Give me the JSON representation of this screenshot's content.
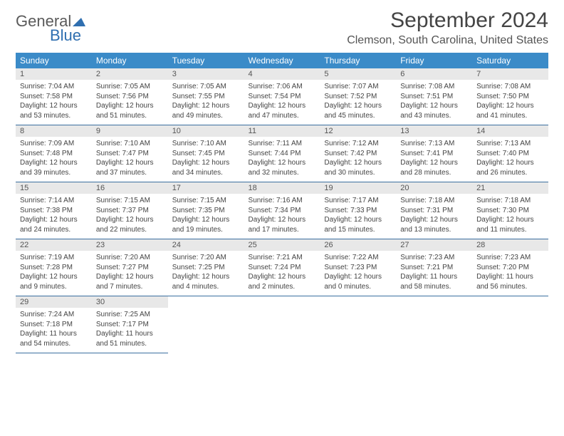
{
  "logo": {
    "line1": "General",
    "line2": "Blue"
  },
  "title": "September 2024",
  "location": "Clemson, South Carolina, United States",
  "colors": {
    "header_bg": "#3b8bc8",
    "header_text": "#ffffff",
    "daynum_bg": "#e8e8e8",
    "border": "#3b6fa0",
    "logo_blue": "#2f6fb0",
    "logo_gray": "#5a5a5a"
  },
  "weekdays": [
    "Sunday",
    "Monday",
    "Tuesday",
    "Wednesday",
    "Thursday",
    "Friday",
    "Saturday"
  ],
  "weeks": [
    [
      {
        "n": "1",
        "sr": "7:04 AM",
        "ss": "7:58 PM",
        "dl": "12 hours and 53 minutes."
      },
      {
        "n": "2",
        "sr": "7:05 AM",
        "ss": "7:56 PM",
        "dl": "12 hours and 51 minutes."
      },
      {
        "n": "3",
        "sr": "7:05 AM",
        "ss": "7:55 PM",
        "dl": "12 hours and 49 minutes."
      },
      {
        "n": "4",
        "sr": "7:06 AM",
        "ss": "7:54 PM",
        "dl": "12 hours and 47 minutes."
      },
      {
        "n": "5",
        "sr": "7:07 AM",
        "ss": "7:52 PM",
        "dl": "12 hours and 45 minutes."
      },
      {
        "n": "6",
        "sr": "7:08 AM",
        "ss": "7:51 PM",
        "dl": "12 hours and 43 minutes."
      },
      {
        "n": "7",
        "sr": "7:08 AM",
        "ss": "7:50 PM",
        "dl": "12 hours and 41 minutes."
      }
    ],
    [
      {
        "n": "8",
        "sr": "7:09 AM",
        "ss": "7:48 PM",
        "dl": "12 hours and 39 minutes."
      },
      {
        "n": "9",
        "sr": "7:10 AM",
        "ss": "7:47 PM",
        "dl": "12 hours and 37 minutes."
      },
      {
        "n": "10",
        "sr": "7:10 AM",
        "ss": "7:45 PM",
        "dl": "12 hours and 34 minutes."
      },
      {
        "n": "11",
        "sr": "7:11 AM",
        "ss": "7:44 PM",
        "dl": "12 hours and 32 minutes."
      },
      {
        "n": "12",
        "sr": "7:12 AM",
        "ss": "7:42 PM",
        "dl": "12 hours and 30 minutes."
      },
      {
        "n": "13",
        "sr": "7:13 AM",
        "ss": "7:41 PM",
        "dl": "12 hours and 28 minutes."
      },
      {
        "n": "14",
        "sr": "7:13 AM",
        "ss": "7:40 PM",
        "dl": "12 hours and 26 minutes."
      }
    ],
    [
      {
        "n": "15",
        "sr": "7:14 AM",
        "ss": "7:38 PM",
        "dl": "12 hours and 24 minutes."
      },
      {
        "n": "16",
        "sr": "7:15 AM",
        "ss": "7:37 PM",
        "dl": "12 hours and 22 minutes."
      },
      {
        "n": "17",
        "sr": "7:15 AM",
        "ss": "7:35 PM",
        "dl": "12 hours and 19 minutes."
      },
      {
        "n": "18",
        "sr": "7:16 AM",
        "ss": "7:34 PM",
        "dl": "12 hours and 17 minutes."
      },
      {
        "n": "19",
        "sr": "7:17 AM",
        "ss": "7:33 PM",
        "dl": "12 hours and 15 minutes."
      },
      {
        "n": "20",
        "sr": "7:18 AM",
        "ss": "7:31 PM",
        "dl": "12 hours and 13 minutes."
      },
      {
        "n": "21",
        "sr": "7:18 AM",
        "ss": "7:30 PM",
        "dl": "12 hours and 11 minutes."
      }
    ],
    [
      {
        "n": "22",
        "sr": "7:19 AM",
        "ss": "7:28 PM",
        "dl": "12 hours and 9 minutes."
      },
      {
        "n": "23",
        "sr": "7:20 AM",
        "ss": "7:27 PM",
        "dl": "12 hours and 7 minutes."
      },
      {
        "n": "24",
        "sr": "7:20 AM",
        "ss": "7:25 PM",
        "dl": "12 hours and 4 minutes."
      },
      {
        "n": "25",
        "sr": "7:21 AM",
        "ss": "7:24 PM",
        "dl": "12 hours and 2 minutes."
      },
      {
        "n": "26",
        "sr": "7:22 AM",
        "ss": "7:23 PM",
        "dl": "12 hours and 0 minutes."
      },
      {
        "n": "27",
        "sr": "7:23 AM",
        "ss": "7:21 PM",
        "dl": "11 hours and 58 minutes."
      },
      {
        "n": "28",
        "sr": "7:23 AM",
        "ss": "7:20 PM",
        "dl": "11 hours and 56 minutes."
      }
    ],
    [
      {
        "n": "29",
        "sr": "7:24 AM",
        "ss": "7:18 PM",
        "dl": "11 hours and 54 minutes."
      },
      {
        "n": "30",
        "sr": "7:25 AM",
        "ss": "7:17 PM",
        "dl": "11 hours and 51 minutes."
      },
      null,
      null,
      null,
      null,
      null
    ]
  ],
  "labels": {
    "sunrise": "Sunrise:",
    "sunset": "Sunset:",
    "daylight": "Daylight:"
  }
}
